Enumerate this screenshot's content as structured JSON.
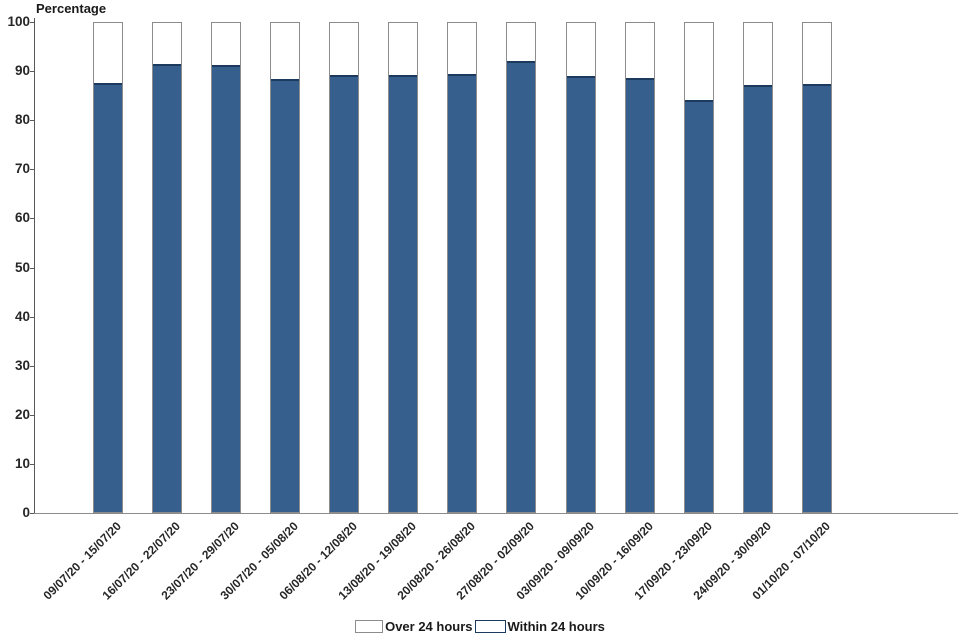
{
  "chart_data": {
    "type": "bar",
    "stacked": true,
    "ylabel": "Percentage",
    "xlabel": "",
    "ylim": [
      0,
      100
    ],
    "yticks": [
      0,
      10,
      20,
      30,
      40,
      50,
      60,
      70,
      80,
      90,
      100
    ],
    "grid": false,
    "legend_position": "bottom",
    "categories": [
      "09/07/20 - 15/07/20",
      "16/07/20 - 22/07/20",
      "23/07/20 - 29/07/20",
      "30/07/20 - 05/08/20",
      "06/08/20 - 12/08/20",
      "13/08/20 - 19/08/20",
      "20/08/20 - 26/08/20",
      "27/08/20 - 02/09/20",
      "03/09/20 - 09/09/20",
      "10/09/20 - 16/09/20",
      "17/09/20 - 23/09/20",
      "24/09/20 - 30/09/20",
      "01/10/20 - 07/10/20"
    ],
    "series": [
      {
        "name": "Within 24 hours",
        "color": "#365F8E",
        "values": [
          87.4,
          91.2,
          91.1,
          88.2,
          89.1,
          89.0,
          89.2,
          91.9,
          88.9,
          88.3,
          84.0,
          86.9,
          87.1
        ]
      },
      {
        "name": "Over 24 hours",
        "color": "#FFFFFF",
        "values": [
          12.6,
          8.8,
          8.9,
          11.8,
          10.9,
          11.0,
          10.8,
          8.1,
          11.1,
          11.7,
          16.0,
          13.1,
          12.9
        ]
      }
    ]
  },
  "legend": {
    "items": [
      {
        "label": "Over 24 hours",
        "color": "#FFFFFF"
      },
      {
        "label": "Within 24 hours",
        "color": "#365F8E"
      }
    ]
  },
  "colors": {
    "bar_fill": "#365F8E",
    "bar_fill_top_border": "#1B3A5E",
    "bar_outline": "#8C8C8C",
    "y_axis_line": "#595959",
    "x_axis_line": "#8C8C8C",
    "text": "#262626"
  }
}
